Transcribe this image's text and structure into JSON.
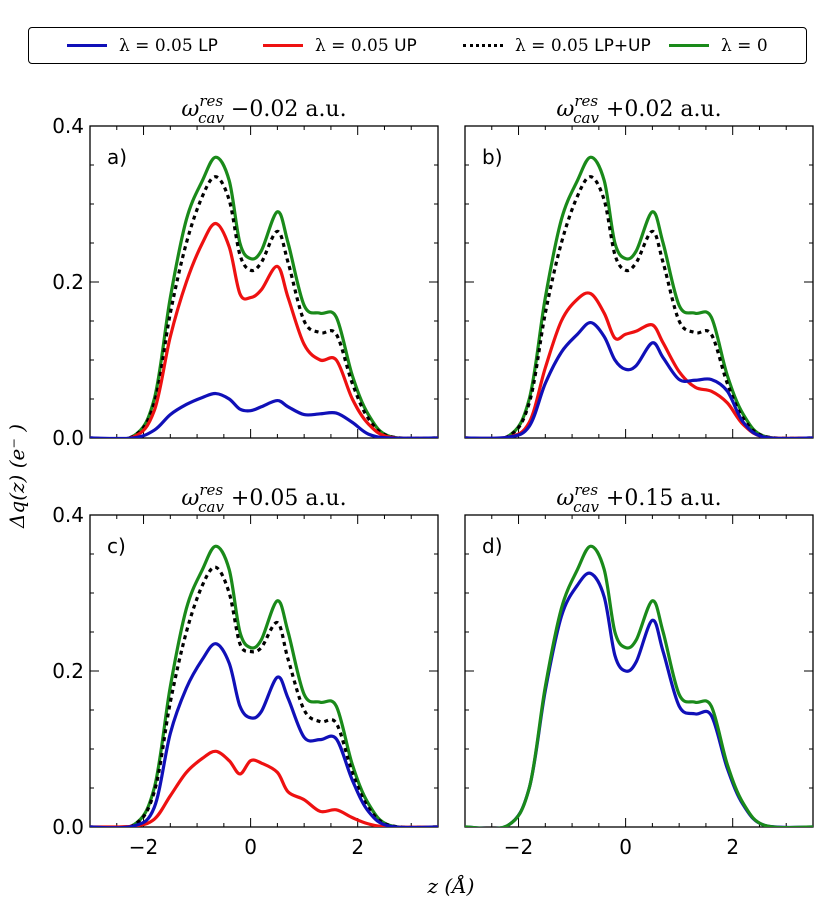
{
  "legend": [
    {
      "key": "lp",
      "prefix": "λ = 0.05 ",
      "suffix": "LP",
      "color": "#1010b8",
      "dash": "solid"
    },
    {
      "key": "up",
      "prefix": "λ = 0.05 ",
      "suffix": "UP",
      "color": "#ee1111",
      "dash": "solid"
    },
    {
      "key": "sum",
      "prefix": "λ = 0.05 ",
      "suffix": "LP+UP",
      "color": "#000000",
      "dash": "dotted"
    },
    {
      "key": "free",
      "prefix": "λ = 0",
      "suffix": "",
      "color": "#1a8a1a",
      "dash": "solid"
    }
  ],
  "axis": {
    "xlabel": "z (Å)",
    "ylabel": "Δq(z)  (e⁻ )",
    "xlim": [
      -3,
      3.5
    ],
    "ylim": [
      0,
      0.4
    ],
    "xticks": [
      -2,
      0,
      2
    ],
    "yticks": [
      0.0,
      0.2,
      0.4
    ],
    "xtick_labels": [
      "−2",
      "0",
      "2"
    ],
    "ytick_labels": [
      "0.0",
      "0.2",
      "0.4"
    ]
  },
  "chart_data": [
    {
      "type": "line",
      "letter": "a)",
      "title": "ω_cav^res −0.02  a.u.",
      "title_main": "ω",
      "title_sub": "cav",
      "title_sup": "res",
      "title_rest": " −0.02  a.u.",
      "x": [
        -3,
        -2.2,
        -1.8,
        -1.5,
        -1.2,
        -0.9,
        -0.65,
        -0.4,
        -0.2,
        0,
        0.2,
        0.5,
        0.7,
        1.0,
        1.3,
        1.6,
        1.9,
        2.2,
        2.6,
        3.5
      ],
      "series": [
        {
          "name": "λ = 0",
          "key": "free",
          "values": [
            0,
            0.002,
            0.05,
            0.18,
            0.28,
            0.33,
            0.36,
            0.33,
            0.25,
            0.23,
            0.24,
            0.29,
            0.25,
            0.17,
            0.16,
            0.155,
            0.08,
            0.03,
            0.002,
            0
          ]
        },
        {
          "name": "λ = 0.05 LP+UP",
          "key": "sum",
          "values": [
            0,
            0.002,
            0.045,
            0.16,
            0.25,
            0.31,
            0.335,
            0.305,
            0.235,
            0.215,
            0.225,
            0.265,
            0.225,
            0.15,
            0.135,
            0.133,
            0.07,
            0.025,
            0.002,
            0
          ]
        },
        {
          "name": "λ = 0.05 UP",
          "key": "up",
          "values": [
            0,
            0.001,
            0.035,
            0.13,
            0.2,
            0.25,
            0.275,
            0.245,
            0.185,
            0.18,
            0.19,
            0.22,
            0.18,
            0.12,
            0.1,
            0.1,
            0.05,
            0.018,
            0.001,
            0
          ]
        },
        {
          "name": "λ = 0.05 LP",
          "key": "lp",
          "values": [
            0,
            0.0,
            0.01,
            0.03,
            0.043,
            0.052,
            0.057,
            0.05,
            0.037,
            0.035,
            0.04,
            0.048,
            0.04,
            0.03,
            0.031,
            0.032,
            0.02,
            0.005,
            0,
            0
          ]
        }
      ]
    },
    {
      "type": "line",
      "letter": "b)",
      "title": "ω_cav^res +0.02  a.u.",
      "title_main": "ω",
      "title_sub": "cav",
      "title_sup": "res",
      "title_rest": " +0.02  a.u.",
      "x": [
        -3,
        -2.2,
        -1.8,
        -1.5,
        -1.2,
        -0.9,
        -0.65,
        -0.4,
        -0.2,
        0,
        0.2,
        0.5,
        0.7,
        1.0,
        1.3,
        1.6,
        1.9,
        2.2,
        2.6,
        3.5
      ],
      "series": [
        {
          "name": "λ = 0",
          "key": "free",
          "values": [
            0,
            0.002,
            0.05,
            0.18,
            0.28,
            0.33,
            0.36,
            0.33,
            0.25,
            0.23,
            0.24,
            0.29,
            0.25,
            0.17,
            0.16,
            0.155,
            0.08,
            0.03,
            0.002,
            0
          ]
        },
        {
          "name": "λ = 0.05 LP+UP",
          "key": "sum",
          "values": [
            0,
            0.002,
            0.045,
            0.16,
            0.25,
            0.31,
            0.335,
            0.305,
            0.235,
            0.215,
            0.225,
            0.265,
            0.225,
            0.15,
            0.135,
            0.133,
            0.07,
            0.025,
            0.002,
            0
          ]
        },
        {
          "name": "λ = 0.05 UP",
          "key": "up",
          "values": [
            0,
            0.001,
            0.02,
            0.09,
            0.15,
            0.178,
            0.185,
            0.16,
            0.128,
            0.133,
            0.137,
            0.145,
            0.122,
            0.085,
            0.065,
            0.06,
            0.045,
            0.017,
            0.001,
            0
          ]
        },
        {
          "name": "λ = 0.05 LP",
          "key": "lp",
          "values": [
            0,
            0.001,
            0.015,
            0.07,
            0.11,
            0.133,
            0.148,
            0.13,
            0.1,
            0.088,
            0.093,
            0.122,
            0.103,
            0.075,
            0.074,
            0.075,
            0.06,
            0.02,
            0.001,
            0
          ]
        }
      ]
    },
    {
      "type": "line",
      "letter": "c)",
      "title": "ω_cav^res +0.05  a.u.",
      "title_main": "ω",
      "title_sub": "cav",
      "title_sup": "res",
      "title_rest": " +0.05  a.u.",
      "x": [
        -3,
        -2.2,
        -1.8,
        -1.5,
        -1.2,
        -0.9,
        -0.65,
        -0.4,
        -0.2,
        0,
        0.2,
        0.5,
        0.7,
        1.0,
        1.3,
        1.6,
        1.9,
        2.2,
        2.6,
        3.5
      ],
      "series": [
        {
          "name": "λ = 0",
          "key": "free",
          "values": [
            0,
            0.002,
            0.05,
            0.18,
            0.28,
            0.33,
            0.36,
            0.33,
            0.25,
            0.23,
            0.24,
            0.29,
            0.25,
            0.17,
            0.16,
            0.155,
            0.08,
            0.03,
            0.002,
            0
          ]
        },
        {
          "name": "λ = 0.05 LP+UP",
          "key": "sum",
          "values": [
            0,
            0.002,
            0.045,
            0.16,
            0.25,
            0.31,
            0.333,
            0.3,
            0.235,
            0.225,
            0.23,
            0.262,
            0.215,
            0.15,
            0.135,
            0.133,
            0.07,
            0.025,
            0.002,
            0
          ]
        },
        {
          "name": "λ = 0.05 UP",
          "key": "up",
          "values": [
            0,
            0.001,
            0.01,
            0.04,
            0.07,
            0.088,
            0.097,
            0.085,
            0.068,
            0.085,
            0.082,
            0.07,
            0.045,
            0.035,
            0.02,
            0.022,
            0.012,
            0.004,
            0,
            0
          ]
        },
        {
          "name": "λ = 0.05 LP",
          "key": "lp",
          "values": [
            0,
            0.001,
            0.025,
            0.12,
            0.178,
            0.215,
            0.235,
            0.21,
            0.155,
            0.14,
            0.148,
            0.192,
            0.165,
            0.115,
            0.112,
            0.113,
            0.06,
            0.02,
            0.001,
            0
          ]
        }
      ]
    },
    {
      "type": "line",
      "letter": "d)",
      "title": "ω_cav^res +0.15  a.u.",
      "title_main": "ω",
      "title_sub": "cav",
      "title_sup": "res",
      "title_rest": " +0.15  a.u.",
      "x": [
        -3,
        -2.2,
        -1.8,
        -1.5,
        -1.2,
        -0.9,
        -0.65,
        -0.4,
        -0.2,
        0,
        0.2,
        0.5,
        0.7,
        1.0,
        1.3,
        1.6,
        1.9,
        2.2,
        2.6,
        3.5
      ],
      "series": [
        {
          "name": "λ = 0.05 LP",
          "key": "lp",
          "values": [
            0,
            0.002,
            0.05,
            0.175,
            0.27,
            0.31,
            0.325,
            0.295,
            0.22,
            0.2,
            0.212,
            0.265,
            0.225,
            0.155,
            0.145,
            0.143,
            0.075,
            0.028,
            0.002,
            0
          ]
        },
        {
          "name": "λ = 0",
          "key": "free",
          "values": [
            0,
            0.002,
            0.05,
            0.18,
            0.28,
            0.33,
            0.36,
            0.33,
            0.25,
            0.23,
            0.24,
            0.29,
            0.25,
            0.17,
            0.16,
            0.155,
            0.08,
            0.03,
            0.002,
            0
          ]
        }
      ]
    }
  ]
}
